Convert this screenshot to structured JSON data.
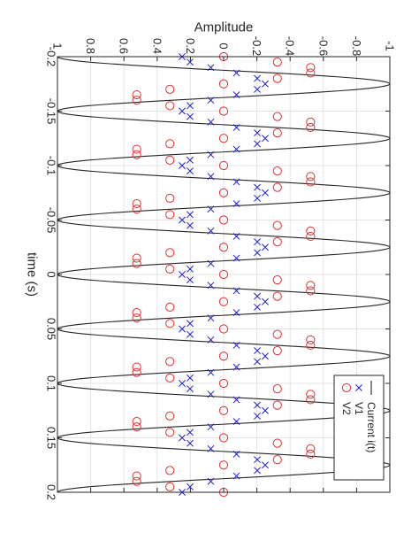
{
  "chart_data": {
    "type": "line",
    "orientation": "rotated-90-cw",
    "xlabel": "time (s)",
    "ylabel": "Amplitude",
    "xlim": [
      -0.2,
      0.2
    ],
    "ylim": [
      -1,
      1
    ],
    "xticks": [
      "-0.2",
      "-0.15",
      "-0.1",
      "-0.05",
      "0",
      "0.05",
      "0.1",
      "0.15",
      "0.2"
    ],
    "yticks": [
      "-1",
      "-0.8",
      "-0.6",
      "-0.4",
      "-0.2",
      "0",
      "0.2",
      "0.4",
      "0.6",
      "0.8",
      "1"
    ],
    "grid": true,
    "legend_position": "bottom-right",
    "series": [
      {
        "name": "Current i(t)",
        "style": "line",
        "color": "#262626",
        "amplitude": 1.0,
        "frequency_hz": 20,
        "phase_deg": 0,
        "x_start": -0.2,
        "x_end": 0.2
      },
      {
        "name": "V1",
        "style": "markers-x",
        "color": "#1f1fd6",
        "amplitude": 0.25,
        "frequency_hz": 20,
        "phase_deg": 0,
        "x_start": -0.2,
        "x_end": 0.2,
        "x_step": 0.005
      },
      {
        "name": "V2",
        "style": "markers-circle",
        "color": "#e03030",
        "amplitude": 0.55,
        "frequency_hz": 20,
        "phase_deg": 90,
        "x_start": -0.2,
        "x_end": 0.2,
        "x_step": 0.005
      }
    ]
  }
}
